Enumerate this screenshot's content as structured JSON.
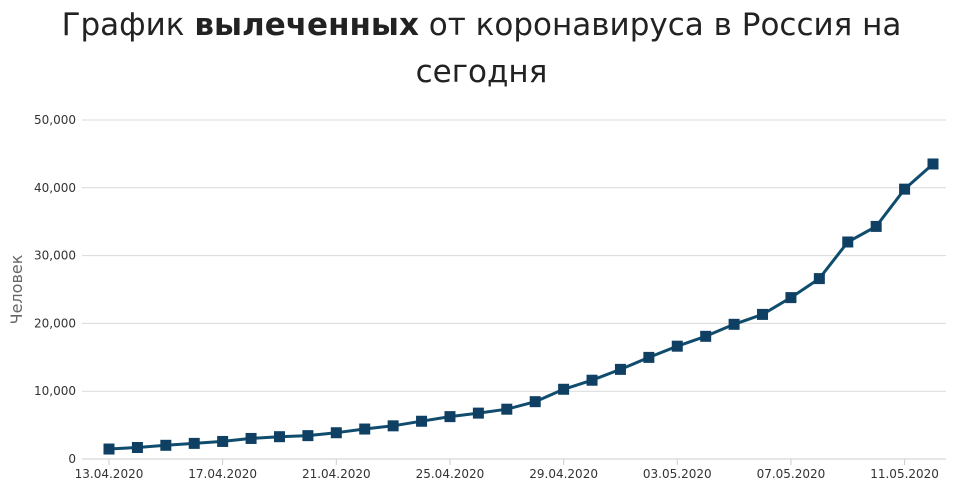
{
  "title": {
    "prefix": "График ",
    "bold": "вылеченных",
    "suffix": " от коронавируса в Россия на сегодня"
  },
  "colors": {
    "line": "#0f4c6e",
    "marker": "#0f3f63",
    "grid": "#d9d9d9",
    "axis": "#cccccc"
  },
  "chart_data": {
    "type": "line",
    "title": "График вылеченных от коронавируса в Россия на сегодня",
    "xlabel": "",
    "ylabel": "Человек",
    "ylim": [
      0,
      50000
    ],
    "yticks": [
      0,
      10000,
      20000,
      30000,
      40000,
      50000
    ],
    "ytick_labels": [
      "0",
      "10,000",
      "20,000",
      "30,000",
      "40,000",
      "50,000"
    ],
    "grid": true,
    "legend": "none",
    "x": [
      "13.04.2020",
      "14.04.2020",
      "15.04.2020",
      "16.04.2020",
      "17.04.2020",
      "18.04.2020",
      "19.04.2020",
      "20.04.2020",
      "21.04.2020",
      "22.04.2020",
      "23.04.2020",
      "24.04.2020",
      "25.04.2020",
      "26.04.2020",
      "27.04.2020",
      "28.04.2020",
      "29.04.2020",
      "30.04.2020",
      "01.05.2020",
      "02.05.2020",
      "03.05.2020",
      "04.05.2020",
      "05.05.2020",
      "06.05.2020",
      "07.05.2020",
      "08.05.2020",
      "09.05.2020",
      "10.05.2020",
      "11.05.2020",
      "12.05.2020"
    ],
    "xtick_labels": [
      "13.04.2020",
      "17.04.2020",
      "21.04.2020",
      "25.04.2020",
      "29.04.2020",
      "03.05.2020",
      "07.05.2020",
      "11.05.2020"
    ],
    "series": [
      {
        "values": [
          1470,
          1694,
          2021,
          2304,
          2590,
          3031,
          3291,
          3446,
          3873,
          4420,
          4891,
          5568,
          6250,
          6767,
          7346,
          8456,
          10286,
          11619,
          13220,
          14988,
          16639,
          18095,
          19865,
          21327,
          23803,
          26608,
          32007,
          34306,
          39801,
          43512
        ]
      }
    ]
  }
}
